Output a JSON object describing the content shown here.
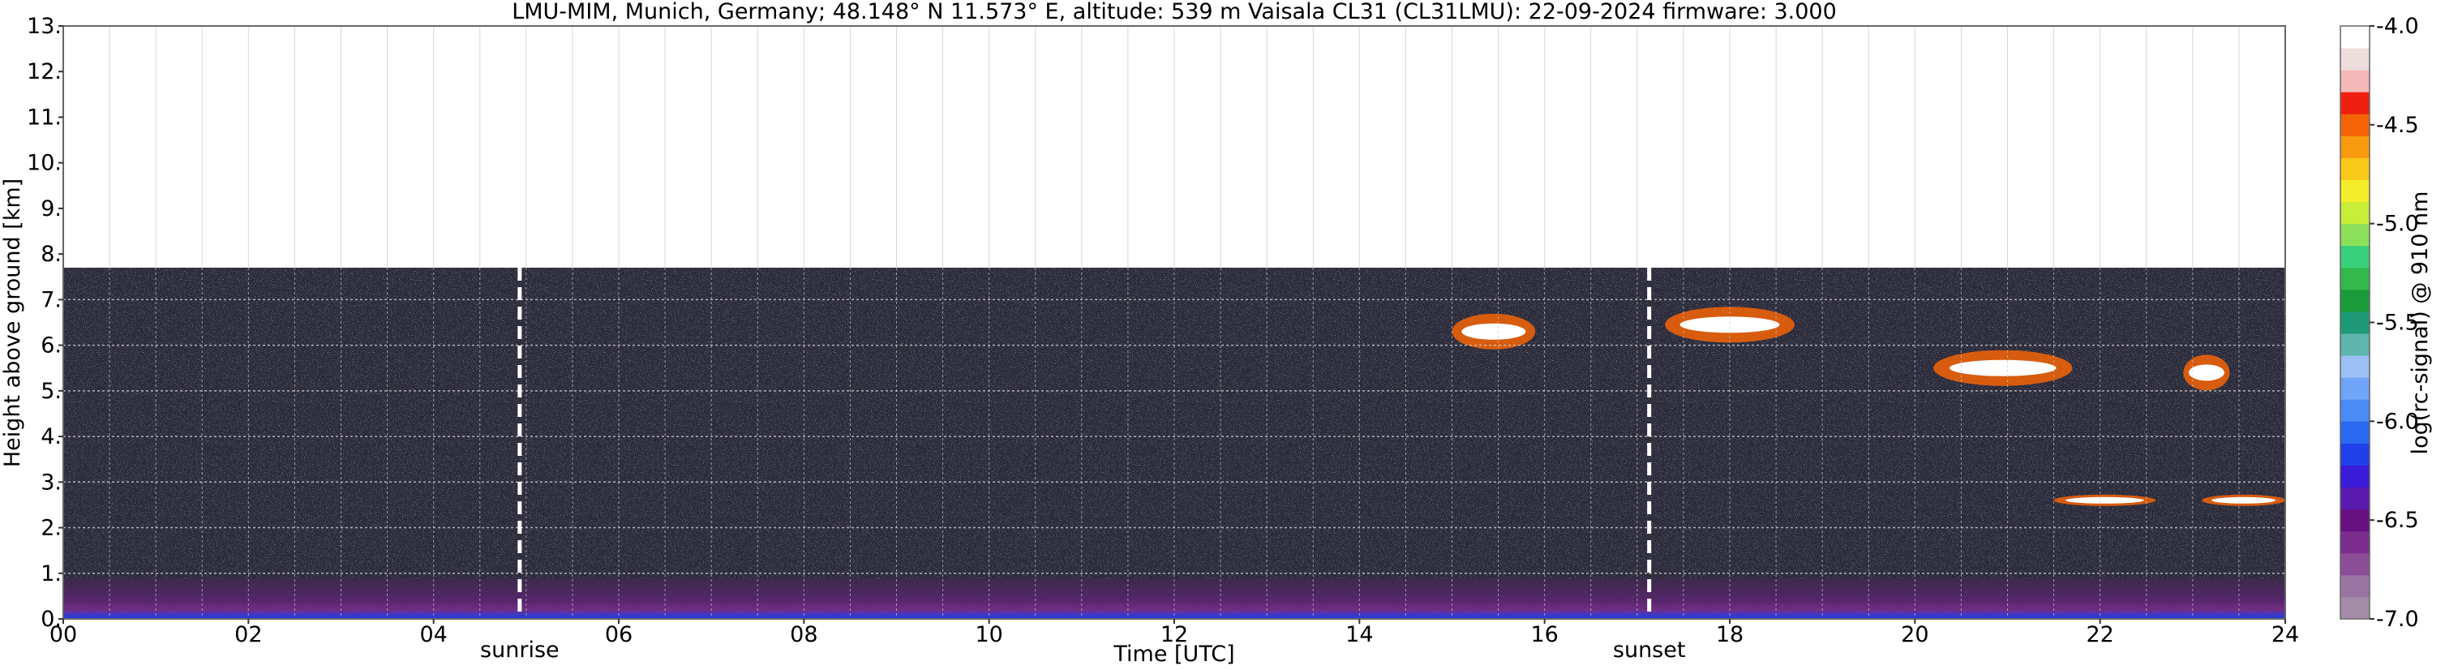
{
  "chart_data": {
    "type": "heatmap",
    "title": "LMU-MIM, Munich, Germany; 48.148° N 11.573° E, altitude: 539 m    Vaisala CL31 (CL31LMU): 22-09-2024    firmware: 3.000",
    "xlabel": "Time [UTC]",
    "ylabel": "Height above ground [km]",
    "xlim": [
      0,
      24
    ],
    "ylim": [
      0,
      13
    ],
    "x_ticks": [
      "00",
      "02",
      "04",
      "06",
      "08",
      "10",
      "12",
      "14",
      "16",
      "18",
      "20",
      "22",
      "24"
    ],
    "y_ticks": [
      "0.",
      "1.",
      "2.",
      "3.",
      "4.",
      "5.",
      "6.",
      "7.",
      "8.",
      "9.",
      "10.",
      "11.",
      "12.",
      "13."
    ],
    "grid": true,
    "colorbar": {
      "label": "log(rc-signal) @ 910 nm",
      "range": [
        -7.0,
        -4.0
      ],
      "ticks": [
        "-4.0",
        "-4.5",
        "-5.0",
        "-5.5",
        "-6.0",
        "-6.5",
        "-7.0"
      ],
      "colors": [
        "#a48ba8",
        "#9a75a4",
        "#8c4d98",
        "#7a2d8c",
        "#660f80",
        "#5a1ab0",
        "#3a1bd8",
        "#1f3fe8",
        "#2a6af0",
        "#4a8af4",
        "#6fa4f6",
        "#9cc0f4",
        "#5fb6ae",
        "#1e9a76",
        "#1a9a38",
        "#32b84a",
        "#38d07a",
        "#8ce05a",
        "#c8ee3a",
        "#f4ee2a",
        "#f8c81a",
        "#f89a0e",
        "#f46406",
        "#f02010",
        "#f4b8b8",
        "#eedddd",
        "#ffffff"
      ]
    },
    "data_top_km": 7.7,
    "annotations": [
      {
        "label": "sunrise",
        "time_h": 4.93
      },
      {
        "label": "sunset",
        "time_h": 17.13
      }
    ],
    "cloud_layers": [
      {
        "t_start": 15.0,
        "t_end": 15.9,
        "height_km": 6.3
      },
      {
        "t_start": 17.3,
        "t_end": 18.7,
        "height_km": 6.45
      },
      {
        "t_start": 20.2,
        "t_end": 21.7,
        "height_km": 5.5
      },
      {
        "t_start": 22.9,
        "t_end": 23.4,
        "height_km": 5.4
      },
      {
        "t_start": 21.5,
        "t_end": 22.6,
        "height_km": 2.6
      },
      {
        "t_start": 23.1,
        "t_end": 24.0,
        "height_km": 2.6
      }
    ]
  }
}
